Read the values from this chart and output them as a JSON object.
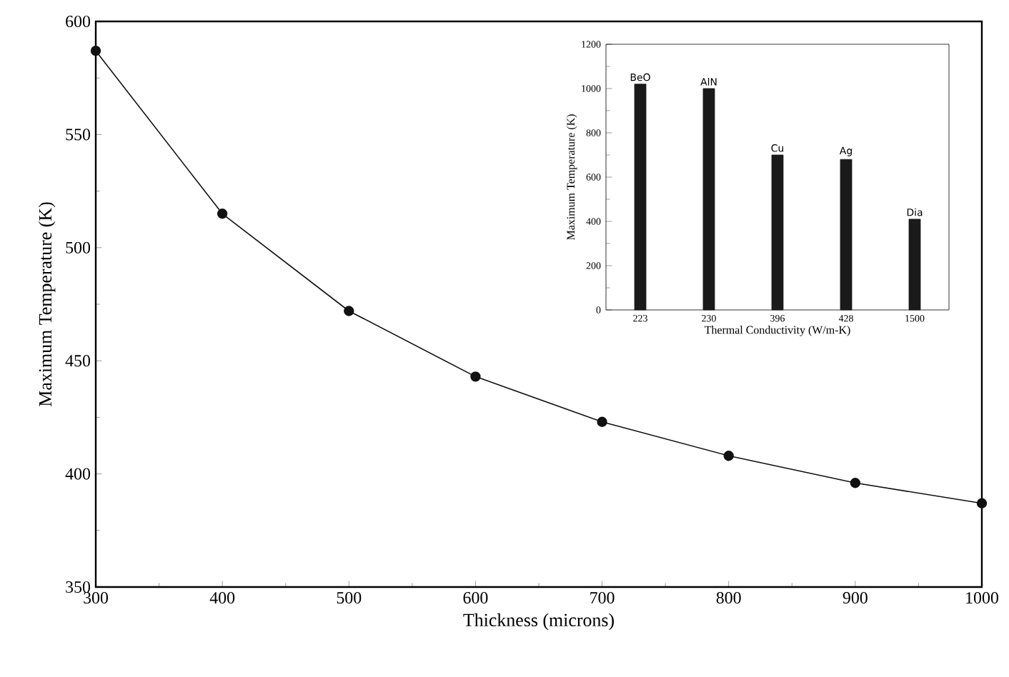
{
  "chart_data": [
    {
      "type": "line",
      "xlabel": "Thickness (microns)",
      "ylabel": "Maximum Temperature (K)",
      "x": [
        300,
        400,
        500,
        600,
        700,
        800,
        900,
        1000
      ],
      "series": [
        {
          "color": "#111111",
          "values": [
            587,
            515,
            472,
            443,
            423,
            408,
            396,
            387
          ]
        }
      ],
      "xlim": [
        300,
        1000
      ],
      "xticks": [
        300,
        400,
        500,
        600,
        700,
        800,
        900,
        1000
      ],
      "ylim": [
        350,
        600
      ],
      "yticks": [
        350,
        400,
        450,
        500,
        550,
        600
      ],
      "marker": "circle",
      "line_style": "solid",
      "grid": false
    },
    {
      "type": "bar",
      "xlabel": "Thermal Conductivity (W/m-K)",
      "ylabel": "Maximum Temperature (K)",
      "categories": [
        "223",
        "230",
        "396",
        "428",
        "1500"
      ],
      "values": [
        1020,
        1000,
        700,
        680,
        410
      ],
      "color": "#1a1a1a",
      "ylim": [
        0,
        1200
      ],
      "yticks": [
        0,
        200,
        400,
        600,
        800,
        1000,
        1200
      ],
      "grid": false,
      "annotations": [
        {
          "text": "BeO",
          "x": "223",
          "y": 1020
        },
        {
          "text": "AlN",
          "x": "230",
          "y": 1000
        },
        {
          "text": "Cu",
          "x": "396",
          "y": 700
        },
        {
          "text": "Ag",
          "x": "428",
          "y": 680
        },
        {
          "text": "Dia",
          "x": "1500",
          "y": 410
        }
      ]
    }
  ]
}
